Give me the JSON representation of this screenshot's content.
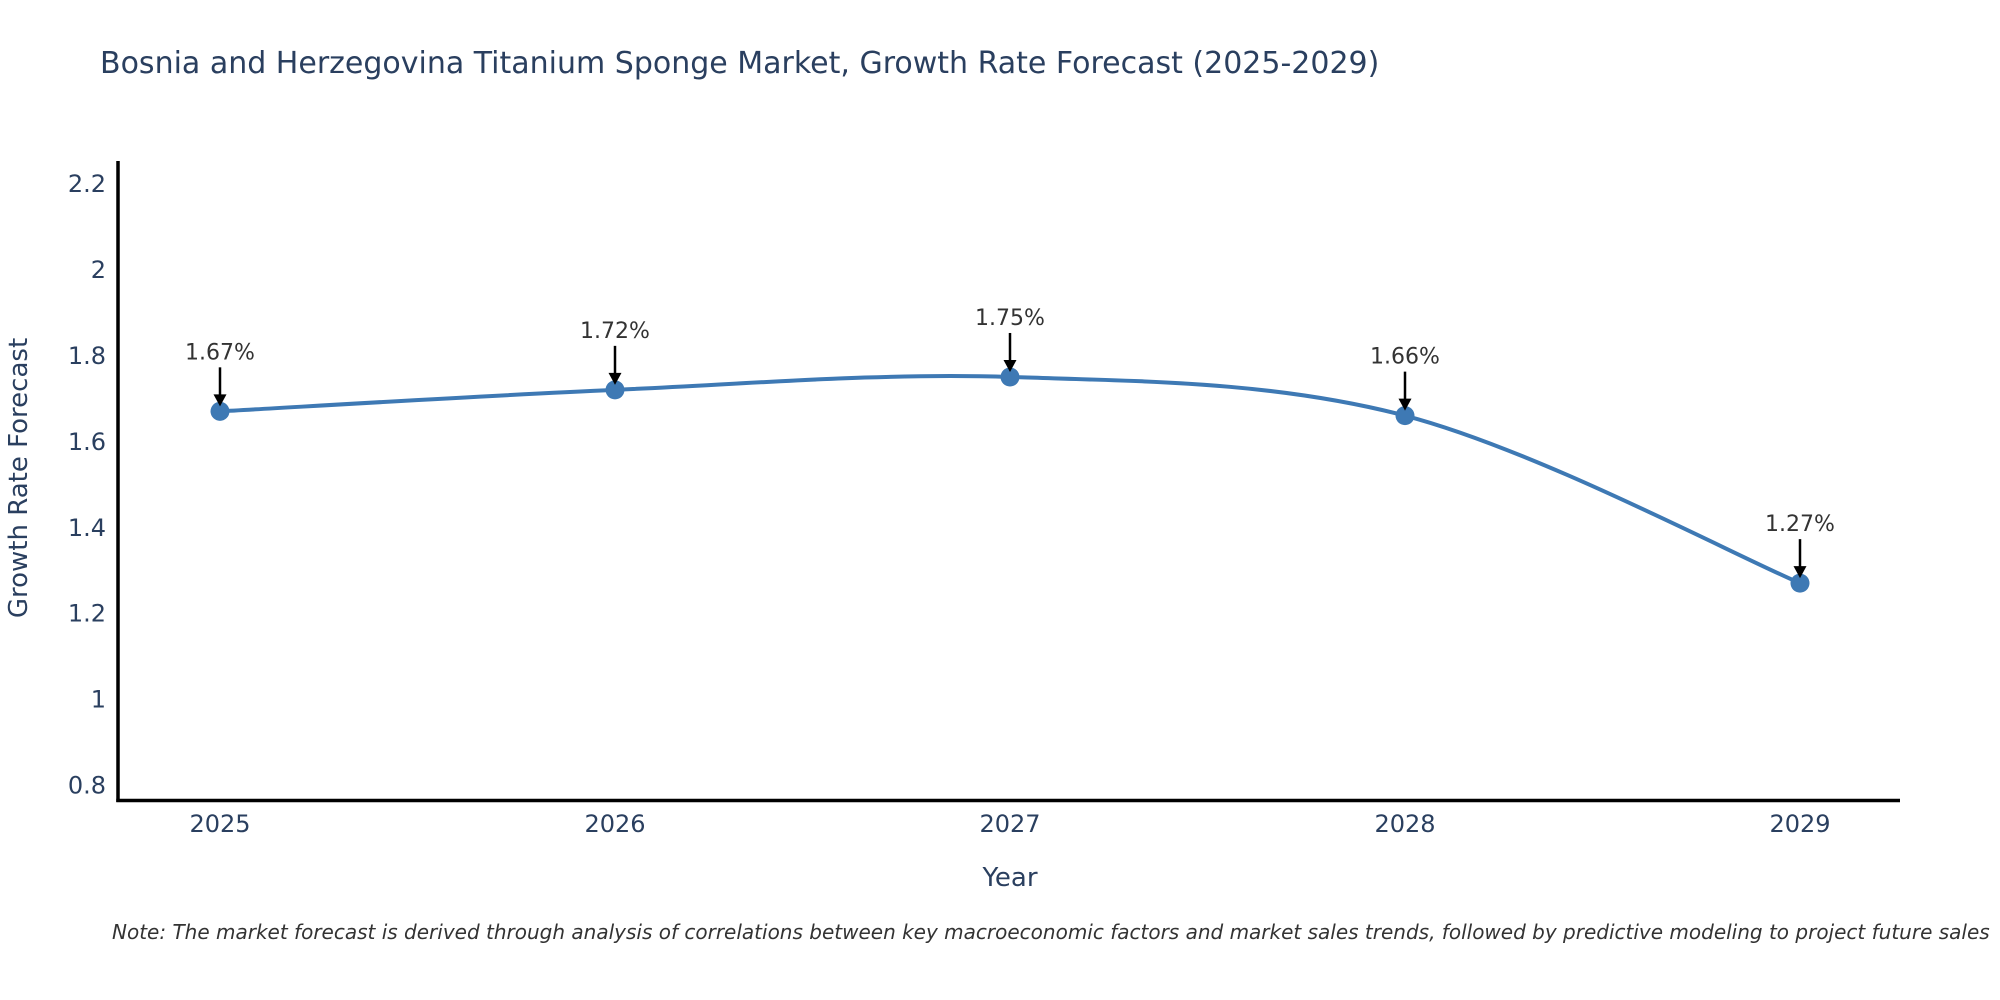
{
  "chart": {
    "title": "Bosnia and Herzegovina Titanium Sponge Market, Growth Rate Forecast (2025-2029)",
    "xlabel": "Year",
    "ylabel": "Growth Rate Forecast",
    "note": "Note: The market forecast is derived through analysis of correlations between key macroeconomic factors and market sales trends, followed by predictive modeling to project future sales"
  },
  "chart_data": {
    "type": "line",
    "title": "Bosnia and Herzegovina Titanium Sponge Market, Growth Rate Forecast (2025-2029)",
    "xlabel": "Year",
    "ylabel": "Growth Rate Forecast",
    "x": [
      "2025",
      "2026",
      "2027",
      "2028",
      "2029"
    ],
    "series": [
      {
        "name": "Growth Rate Forecast",
        "values": [
          1.67,
          1.72,
          1.75,
          1.66,
          1.27
        ],
        "point_labels": [
          "1.67%",
          "1.72%",
          "1.75%",
          "1.66%",
          "1.27%"
        ]
      }
    ],
    "line_shape": "spline",
    "markers": true,
    "grid": false,
    "legend": false,
    "ylim": [
      0.76,
      2.29
    ],
    "yticks": [
      0.8,
      1,
      1.2,
      1.4,
      1.6,
      1.8,
      2,
      2.2
    ],
    "ytick_labels": [
      "0.8",
      "1",
      "1.2",
      "1.4",
      "1.6",
      "1.8",
      "2",
      "2.2"
    ],
    "annotation_arrows": "down",
    "colors": {
      "line": "#3e79b4",
      "marker": "#3e79b4",
      "axis_line": "#000000",
      "title_text": "#2a3f5f",
      "tick_text": "#2a3f5f",
      "annotation_text": "#333333",
      "arrow": "#000000",
      "background": "#ffffff"
    }
  }
}
